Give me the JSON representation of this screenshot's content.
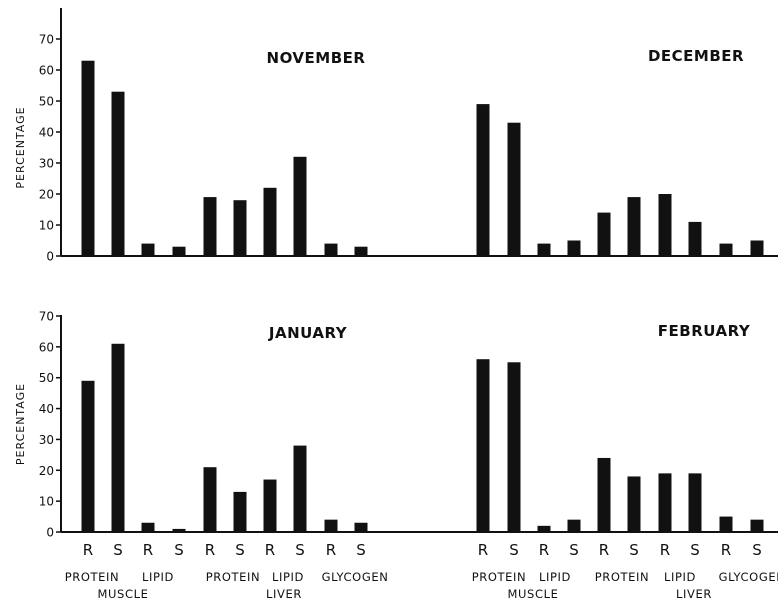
{
  "chart_data": {
    "type": "bar",
    "ylabel": "PERCENTAGE",
    "yticks": [
      0,
      10,
      20,
      30,
      40,
      50,
      60,
      70
    ],
    "ylim": [
      0,
      70
    ],
    "categories": [
      "R",
      "S",
      "R",
      "S",
      "R",
      "S",
      "R",
      "S",
      "R",
      "S"
    ],
    "group_labels": [
      "PROTEIN",
      "LIPID",
      "PROTEIN",
      "LIPID",
      "GLYCOGEN"
    ],
    "tissue_labels": [
      "MUSCLE",
      "LIVER"
    ],
    "panels": [
      {
        "row": 0,
        "side": "left",
        "title": "NOVEMBER",
        "values": [
          63,
          53,
          4,
          3,
          19,
          18,
          22,
          32,
          4,
          3
        ]
      },
      {
        "row": 0,
        "side": "right",
        "title": "DECEMBER",
        "values": [
          49,
          43,
          4,
          5,
          14,
          19,
          20,
          11,
          4,
          5
        ]
      },
      {
        "row": 1,
        "side": "left",
        "title": "JANUARY",
        "values": [
          49,
          61,
          3,
          1,
          21,
          13,
          17,
          28,
          4,
          3
        ]
      },
      {
        "row": 1,
        "side": "right",
        "title": "FEBRUARY",
        "values": [
          56,
          55,
          2,
          4,
          24,
          18,
          19,
          19,
          5,
          4
        ]
      }
    ]
  }
}
